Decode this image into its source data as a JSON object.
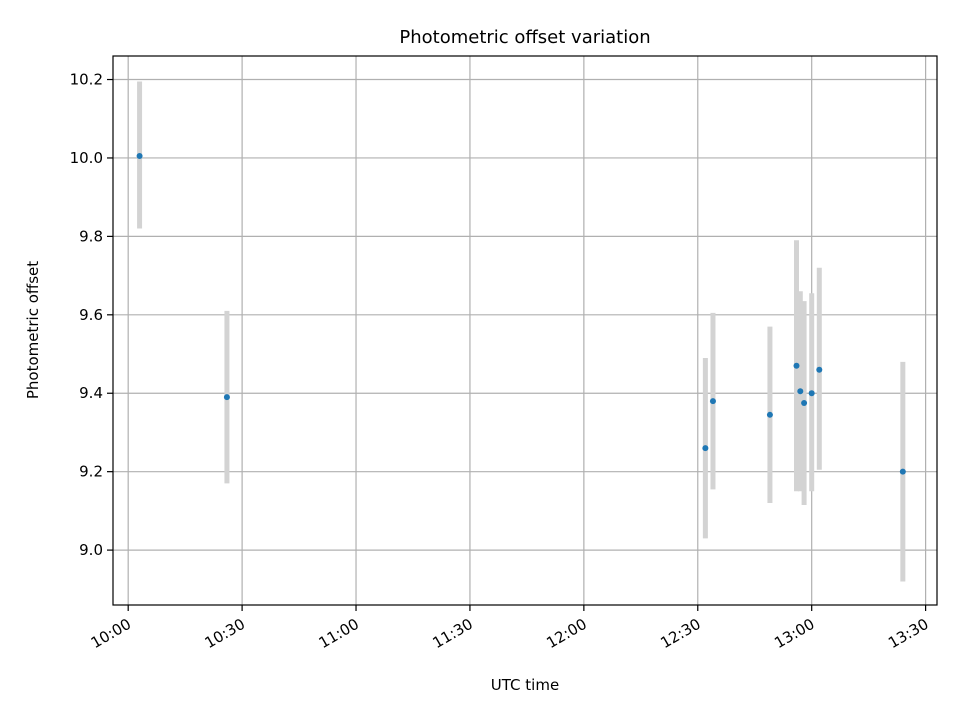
{
  "chart_data": {
    "type": "scatter",
    "title": "Photometric offset variation",
    "xlabel": "UTC time",
    "ylabel": "Photometric offset",
    "x_tick_labels": [
      "10:00",
      "10:30",
      "11:00",
      "11:30",
      "12:00",
      "12:30",
      "13:00",
      "13:30"
    ],
    "y_tick_labels": [
      "9.0",
      "9.2",
      "9.4",
      "9.6",
      "9.8",
      "10.0",
      "10.2"
    ],
    "xlim": [
      "09:56",
      "13:33"
    ],
    "ylim": [
      8.86,
      10.26
    ],
    "grid": true,
    "point_color": "#1f77b4",
    "errorbar_color": "#d3d3d3",
    "points": [
      {
        "x": "10:03",
        "y": 10.005,
        "err_low": 9.82,
        "err_high": 10.195
      },
      {
        "x": "10:26",
        "y": 9.39,
        "err_low": 9.17,
        "err_high": 9.61
      },
      {
        "x": "12:32",
        "y": 9.26,
        "err_low": 9.03,
        "err_high": 9.49
      },
      {
        "x": "12:34",
        "y": 9.38,
        "err_low": 9.155,
        "err_high": 9.605
      },
      {
        "x": "12:49",
        "y": 9.345,
        "err_low": 9.12,
        "err_high": 9.57
      },
      {
        "x": "12:56",
        "y": 9.47,
        "err_low": 9.15,
        "err_high": 9.79
      },
      {
        "x": "12:57",
        "y": 9.405,
        "err_low": 9.15,
        "err_high": 9.66
      },
      {
        "x": "12:58",
        "y": 9.375,
        "err_low": 9.115,
        "err_high": 9.635
      },
      {
        "x": "13:00",
        "y": 9.4,
        "err_low": 9.15,
        "err_high": 9.655
      },
      {
        "x": "13:02",
        "y": 9.46,
        "err_low": 9.205,
        "err_high": 9.72
      },
      {
        "x": "13:24",
        "y": 9.2,
        "err_low": 8.92,
        "err_high": 9.48
      }
    ]
  }
}
